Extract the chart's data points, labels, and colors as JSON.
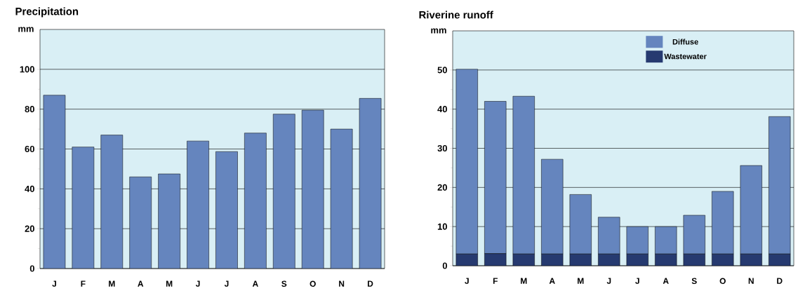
{
  "chart_data": [
    {
      "type": "bar",
      "title": "Precipitation",
      "ylabel": "mm",
      "categories": [
        "J",
        "F",
        "M",
        "A",
        "M",
        "J",
        "J",
        "A",
        "S",
        "O",
        "N",
        "D"
      ],
      "values": [
        87,
        61,
        67,
        46,
        47.5,
        64,
        58.7,
        68,
        77.5,
        79.5,
        70,
        85.4
      ],
      "color": "#6585be",
      "ylim": [
        0,
        120
      ],
      "yticks": [
        0,
        20,
        40,
        60,
        80,
        100
      ],
      "grid": "y"
    },
    {
      "type": "bar",
      "title": "Riverine runoff",
      "ylabel": "mm",
      "categories": [
        "J",
        "F",
        "M",
        "A",
        "M",
        "J",
        "J",
        "A",
        "S",
        "O",
        "N",
        "D"
      ],
      "stacked": true,
      "series": [
        {
          "name": "Wastewater",
          "color": "#263a70",
          "values": [
            3,
            3.1,
            3,
            3,
            3,
            3,
            3,
            3,
            3,
            3,
            3,
            3
          ]
        },
        {
          "name": "Diffuse",
          "color": "#6585be",
          "values": [
            47.2,
            38.9,
            40.3,
            24.2,
            15.2,
            9.4,
            7,
            7,
            9.9,
            16,
            22.6,
            35.1
          ]
        }
      ],
      "ylim": [
        0,
        60
      ],
      "yticks": [
        0,
        10,
        20,
        30,
        40,
        50
      ],
      "grid": "y",
      "legend": "top right"
    }
  ]
}
